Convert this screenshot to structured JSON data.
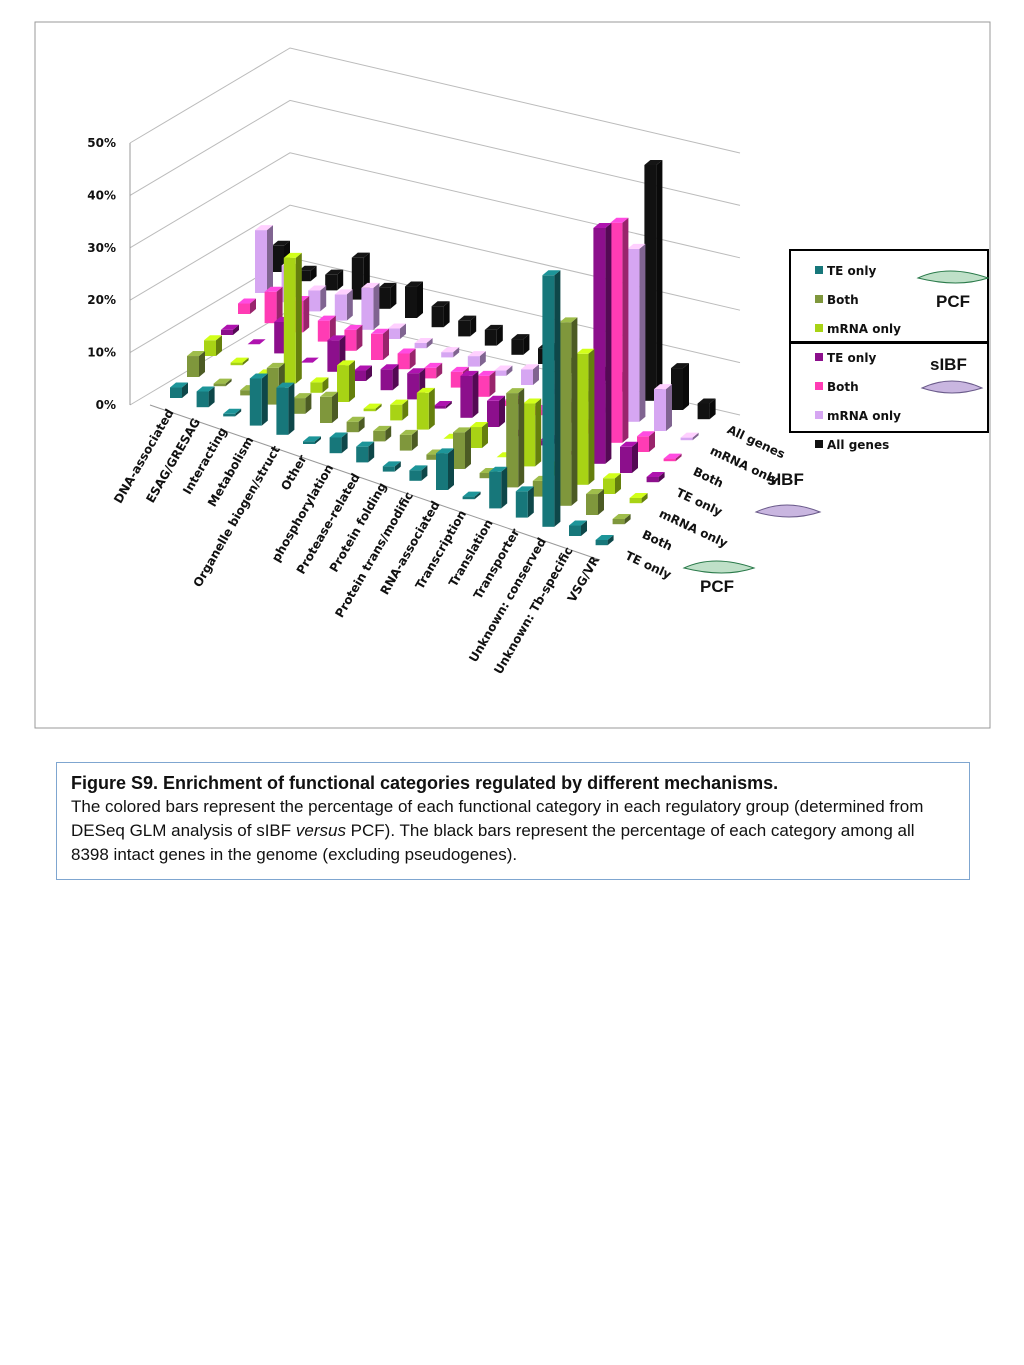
{
  "chart_data": {
    "type": "bar3d",
    "categories": [
      "DNA-associated",
      "ESAG/GRESAG",
      "Interacting",
      "Metabolism",
      "Organelle biogen/struct",
      "Other",
      "phosphorylation",
      "Protease-related",
      "Protein folding",
      "Protein trans/modific",
      "RNA-associated",
      "Transcription",
      "Translation",
      "Transporter",
      "Unknown: conserved",
      "Unknown: Tb-specific",
      "VSG/VR"
    ],
    "groups": [
      "PCF",
      "sIBF"
    ],
    "series": [
      {
        "name": "TE only",
        "color": "#17777a",
        "values": [
          2,
          3,
          0.5,
          9,
          9,
          0.5,
          3,
          3,
          1,
          2,
          7,
          0.5,
          7,
          5,
          48,
          2,
          1
        ]
      },
      {
        "name": "Both",
        "color": "#7f973c",
        "values": [
          4,
          0.5,
          1,
          7,
          3,
          5,
          2,
          2,
          3,
          1,
          7,
          1,
          18,
          3,
          35,
          4,
          1
        ]
      },
      {
        "name": "mRNA only",
        "color": "#a8d315",
        "values": [
          3,
          0.5,
          0,
          24,
          2,
          7,
          0.5,
          3,
          7,
          0,
          4,
          0,
          12,
          2,
          25,
          3,
          1
        ]
      },
      {
        "name": "TE only",
        "color": "#8c0f8c",
        "values": [
          1,
          0,
          6,
          0,
          6,
          2,
          4,
          5,
          0.5,
          8,
          5,
          0.5,
          1,
          0,
          45,
          5,
          1
        ]
      },
      {
        "name": "Both",
        "color": "#ff3cb4",
        "values": [
          2,
          6,
          6,
          4,
          4,
          5,
          3,
          2,
          3,
          4,
          1,
          1,
          4,
          2,
          42,
          3,
          0.5
        ]
      },
      {
        "name": "mRNA only",
        "color": "#d6a6f2",
        "values": [
          12,
          7,
          4,
          5,
          8,
          2,
          1,
          1,
          2,
          1,
          3,
          1,
          2,
          1,
          33,
          8,
          0.5
        ]
      },
      {
        "name": "All genes",
        "color": "#111111",
        "values": [
          5,
          2,
          3,
          8,
          4,
          6,
          4,
          3,
          3,
          3,
          3,
          2,
          2,
          3,
          45,
          8,
          3
        ]
      }
    ],
    "ylim": [
      0,
      50
    ],
    "yticks": [
      {
        "value": 0,
        "label": "0%"
      },
      {
        "value": 10,
        "label": "10%"
      },
      {
        "value": 20,
        "label": "20%"
      },
      {
        "value": 30,
        "label": "30%"
      },
      {
        "value": 40,
        "label": "40%"
      },
      {
        "value": 50,
        "label": "50%"
      }
    ],
    "grid": true
  },
  "caption": {
    "title": "Figure S9. Enrichment of functional categories regulated by different mechanisms.",
    "body": [
      "The colored bars represent the percentage of each functional category in each regulatory group (determined from DESeq GLM analysis of sIBF ",
      "versus",
      " PCF).  The black bars  represent the percentage of each category among all  8398 intact genes in the genome (excluding pseudogenes)."
    ]
  }
}
